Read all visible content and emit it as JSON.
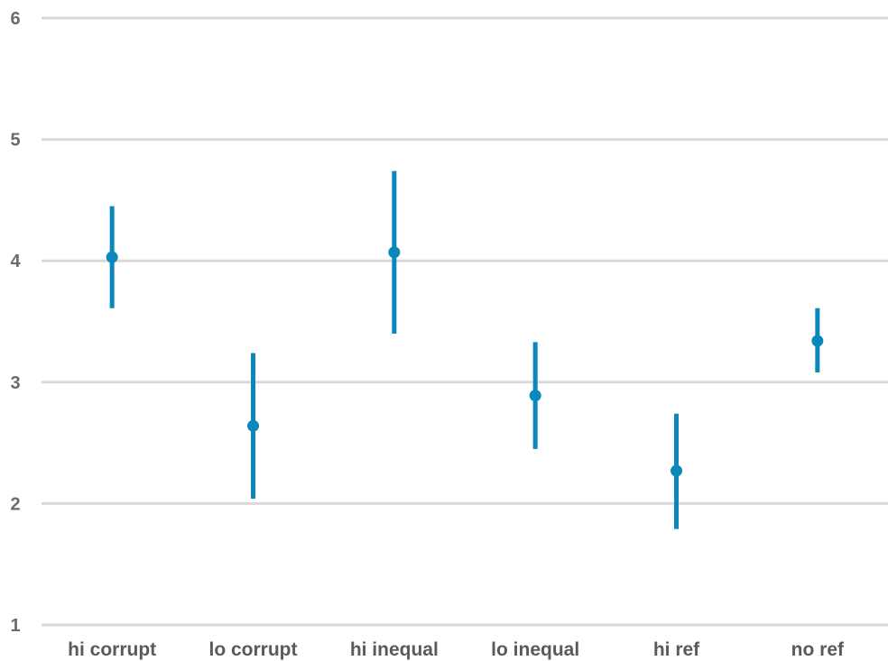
{
  "chart_data": {
    "type": "scatter",
    "title": "",
    "xlabel": "",
    "ylabel": "",
    "ylim": [
      1,
      6
    ],
    "yticks": [
      1,
      2,
      3,
      4,
      5,
      6
    ],
    "grid": true,
    "marker_color": "#0a87bb",
    "grid_color": "#d9d9d9",
    "categories": [
      "hi corrupt",
      "lo corrupt",
      "hi inequal",
      "lo inequal",
      "hi ref",
      "no ref"
    ],
    "points": [
      {
        "category": "hi corrupt",
        "mean": 4.03,
        "low": 3.61,
        "high": 4.45
      },
      {
        "category": "lo corrupt",
        "mean": 2.64,
        "low": 2.04,
        "high": 3.24
      },
      {
        "category": "hi inequal",
        "mean": 4.07,
        "low": 3.4,
        "high": 4.74
      },
      {
        "category": "lo inequal",
        "mean": 2.89,
        "low": 2.45,
        "high": 3.33
      },
      {
        "category": "hi ref",
        "mean": 2.27,
        "low": 1.79,
        "high": 2.74
      },
      {
        "category": "no ref",
        "mean": 3.34,
        "low": 3.08,
        "high": 3.61
      }
    ]
  }
}
